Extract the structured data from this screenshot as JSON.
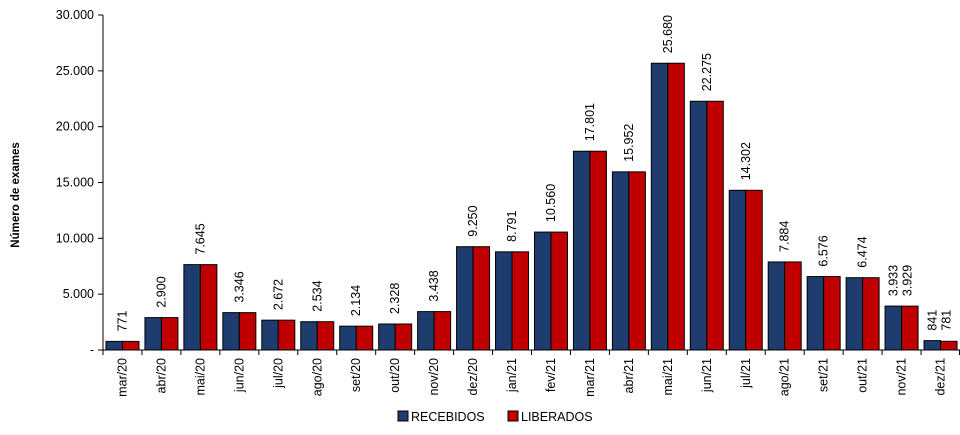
{
  "chart_data": {
    "type": "bar",
    "title": "",
    "xlabel": "",
    "ylabel": "Número de exames",
    "ylim": [
      0,
      30000
    ],
    "yticks": [
      "-",
      "5.000",
      "10.000",
      "15.000",
      "20.000",
      "25.000",
      "30.000"
    ],
    "ytick_values": [
      0,
      5000,
      10000,
      15000,
      20000,
      25000,
      30000
    ],
    "grid": false,
    "legend_position": "bottom",
    "categories": [
      "mar/20",
      "abr/20",
      "mai/20",
      "jun/20",
      "jul/20",
      "ago/20",
      "set/20",
      "out/20",
      "nov/20",
      "dez/20",
      "jan/21",
      "fev/21",
      "mar/21",
      "abr/21",
      "mai/21",
      "jun/21",
      "jul/21",
      "ago/21",
      "set/21",
      "out/21",
      "nov/21",
      "dez/21"
    ],
    "series": [
      {
        "name": "RECEBIDOS",
        "color": "#1F3C6E",
        "values": [
          771,
          2900,
          7645,
          3346,
          2672,
          2534,
          2134,
          2328,
          3438,
          9250,
          8791,
          10560,
          17801,
          15952,
          25680,
          22275,
          14302,
          7884,
          6576,
          6474,
          3933,
          841
        ]
      },
      {
        "name": "LIBERADOS",
        "color": "#C00000",
        "values": [
          771,
          2900,
          7645,
          3346,
          2672,
          2534,
          2134,
          2328,
          3438,
          9250,
          8791,
          10560,
          17801,
          15952,
          25680,
          22275,
          14302,
          7884,
          6576,
          6474,
          3929,
          781
        ]
      }
    ],
    "data_labels": [
      {
        "text": "771"
      },
      {
        "text": "2.900"
      },
      {
        "text": "7.645"
      },
      {
        "text": "3.346"
      },
      {
        "text": "2.672"
      },
      {
        "text": "2.534"
      },
      {
        "text": "2.134"
      },
      {
        "text": "2.328"
      },
      {
        "text": "3.438"
      },
      {
        "text": "9.250"
      },
      {
        "text": "8.791"
      },
      {
        "text": "10.560"
      },
      {
        "text": "17.801"
      },
      {
        "text": "15.952"
      },
      {
        "text": "25.680"
      },
      {
        "text": "22.275"
      },
      {
        "text": "14.302"
      },
      {
        "text": "7.884"
      },
      {
        "text": "6.576"
      },
      {
        "text": "6.474"
      },
      {
        "text": "3.933",
        "text2": "3.929"
      },
      {
        "text": "841",
        "text2": "781"
      }
    ]
  }
}
